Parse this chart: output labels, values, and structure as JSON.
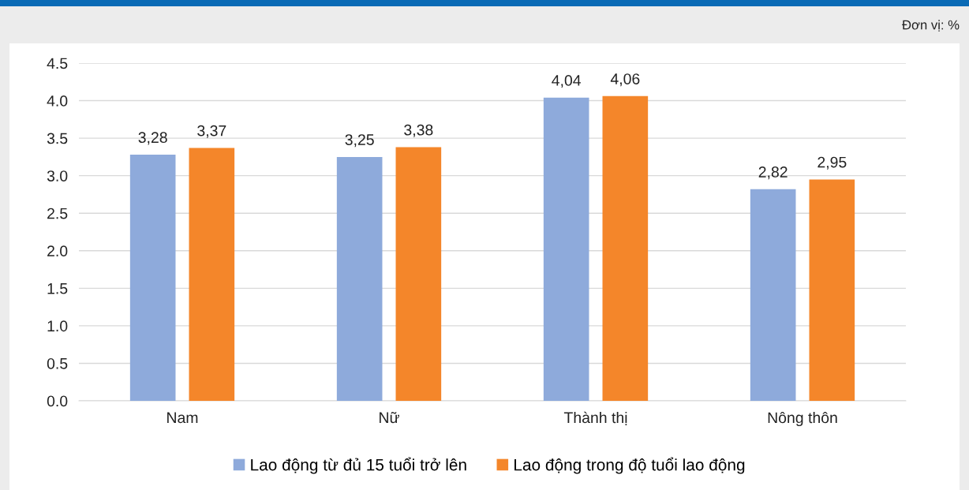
{
  "chart_data": {
    "type": "bar",
    "categories": [
      "Nam",
      "Nữ",
      "Thành thị",
      "Nông thôn"
    ],
    "series": [
      {
        "name": "Lao động từ đủ 15 tuổi trở lên",
        "color": "#8eaadb",
        "values": [
          3.28,
          3.25,
          4.04,
          2.82
        ],
        "value_labels": [
          "3,28",
          "3,25",
          "4,04",
          "2,82"
        ]
      },
      {
        "name": "Lao động trong độ tuổi lao động",
        "color": "#f4862a",
        "values": [
          3.37,
          3.38,
          4.06,
          2.95
        ],
        "value_labels": [
          "3,37",
          "3,38",
          "4,06",
          "2,95"
        ]
      }
    ],
    "ylim": [
      0,
      4.5
    ],
    "yticks": [
      {
        "value": 0,
        "label": "0.0"
      },
      {
        "value": 0.5,
        "label": "0.5"
      },
      {
        "value": 1,
        "label": "1.0"
      },
      {
        "value": 1.5,
        "label": "1.5"
      },
      {
        "value": 2,
        "label": "2.0"
      },
      {
        "value": 2.5,
        "label": "2.5"
      },
      {
        "value": 3,
        "label": "3.0"
      },
      {
        "value": 3.5,
        "label": "3.5"
      },
      {
        "value": 4,
        "label": "4.0"
      },
      {
        "value": 4.5,
        "label": "4.5"
      }
    ],
    "annotations": [
      "Đơn vị: %"
    ],
    "grid": "y",
    "legend": "bottom"
  }
}
